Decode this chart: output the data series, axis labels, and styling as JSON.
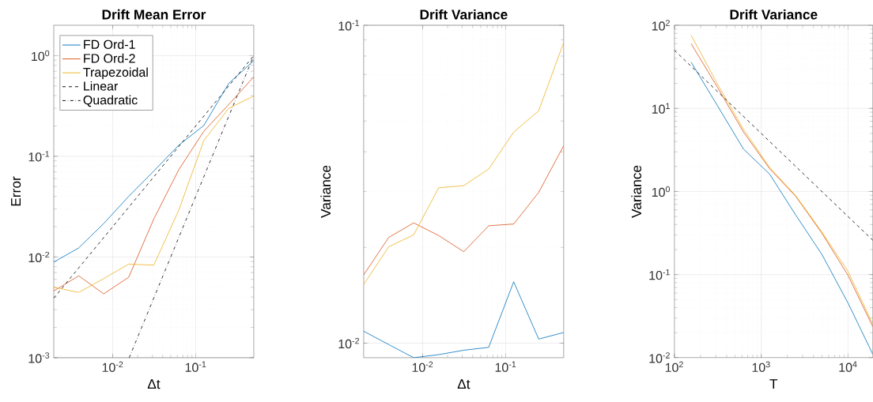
{
  "chart_data": [
    {
      "type": "line",
      "title": "Drift Mean Error",
      "xlabel": "Δt",
      "ylabel": "Error",
      "log": "xy",
      "grid": true,
      "legend": "top left",
      "xlim": [
        0.00195,
        0.5
      ],
      "ylim": [
        0.001,
        2
      ],
      "xticks": [
        {
          "value": 0.01,
          "label": "10$^{-2}$"
        },
        {
          "value": 0.1,
          "label": "10$^{-1}$"
        }
      ],
      "yticks": [
        {
          "value": 0.001,
          "label": "10$^{-3}$"
        },
        {
          "value": 0.01,
          "label": "10$^{-2}$"
        },
        {
          "value": 0.1,
          "label": "10$^{-1}$"
        },
        {
          "value": 1,
          "label": "10$^{0}$"
        }
      ],
      "series": [
        {
          "name": "FD Ord-1",
          "color": "#0072bd",
          "line_style": "solid",
          "x": [
            0.00195,
            0.0039,
            0.0078,
            0.0156,
            0.0313,
            0.0625,
            0.125,
            0.25,
            0.5
          ],
          "values": [
            0.0089,
            0.0123,
            0.0215,
            0.04,
            0.0714,
            0.129,
            0.202,
            0.53,
            0.89
          ]
        },
        {
          "name": "FD Ord-2",
          "color": "#d95319",
          "line_style": "solid",
          "x": [
            0.00195,
            0.0039,
            0.0078,
            0.0156,
            0.0313,
            0.0625,
            0.125,
            0.25,
            0.5
          ],
          "values": [
            0.0046,
            0.0065,
            0.0043,
            0.0063,
            0.0239,
            0.0736,
            0.177,
            0.327,
            0.615
          ]
        },
        {
          "name": "Trapezoidal",
          "color": "#edb120",
          "line_style": "solid",
          "x": [
            0.00195,
            0.0039,
            0.0078,
            0.0156,
            0.0313,
            0.0625,
            0.125,
            0.25,
            0.5
          ],
          "values": [
            0.005,
            0.00445,
            0.0061,
            0.0085,
            0.0083,
            0.0292,
            0.143,
            0.3,
            0.396
          ]
        },
        {
          "name": "Linear",
          "color": "#000000",
          "line_style": "dashed",
          "x": [
            0.00195,
            0.5
          ],
          "values": [
            0.0039,
            1.0
          ]
        },
        {
          "name": "Quadratic",
          "color": "#000000",
          "line_style": "dashdot",
          "x": [
            0.0158,
            0.5
          ],
          "values": [
            0.001,
            1.0
          ]
        }
      ]
    },
    {
      "type": "line",
      "title": "Drift Variance",
      "xlabel": "Δt",
      "ylabel": "Variance",
      "log": "xy",
      "grid": true,
      "xlim": [
        0.00195,
        0.5
      ],
      "ylim": [
        0.009,
        0.1
      ],
      "xticks": [
        {
          "value": 0.01,
          "label": "10$^{-2}$"
        },
        {
          "value": 0.1,
          "label": "10$^{-1}$"
        }
      ],
      "yticks": [
        {
          "value": 0.01,
          "label": "10$^{-2}$"
        },
        {
          "value": 0.1,
          "label": "10$^{-1}$"
        }
      ],
      "series": [
        {
          "color": "#0072bd",
          "line_style": "solid",
          "x": [
            0.00195,
            0.0039,
            0.0078,
            0.0156,
            0.0313,
            0.0625,
            0.125,
            0.25,
            0.5
          ],
          "values": [
            0.0109,
            0.0099,
            0.009,
            0.0092,
            0.0095,
            0.0097,
            0.0156,
            0.0103,
            0.0108
          ]
        },
        {
          "color": "#d95319",
          "line_style": "solid",
          "x": [
            0.00195,
            0.0039,
            0.0078,
            0.0156,
            0.0313,
            0.0625,
            0.125,
            0.25,
            0.5
          ],
          "values": [
            0.0164,
            0.0215,
            0.0239,
            0.0218,
            0.0194,
            0.0234,
            0.0237,
            0.0298,
            0.0418
          ]
        },
        {
          "color": "#edb120",
          "line_style": "solid",
          "x": [
            0.00195,
            0.0039,
            0.0078,
            0.0156,
            0.0313,
            0.0625,
            0.125,
            0.25,
            0.5
          ],
          "values": [
            0.0153,
            0.0201,
            0.0219,
            0.0308,
            0.0313,
            0.0353,
            0.0461,
            0.0538,
            0.0883
          ]
        }
      ]
    },
    {
      "type": "line",
      "title": "Drift Variance",
      "xlabel": "T",
      "ylabel": "Variance",
      "log": "xy",
      "grid": true,
      "xlim": [
        100,
        19300
      ],
      "ylim": [
        0.01,
        100
      ],
      "xticks": [
        {
          "value": 100,
          "label": "10$^{2}$"
        },
        {
          "value": 1000,
          "label": "10$^{3}$"
        },
        {
          "value": 10000,
          "label": "10$^{4}$"
        }
      ],
      "yticks": [
        {
          "value": 0.01,
          "label": "10$^{-2}$"
        },
        {
          "value": 0.1,
          "label": "10$^{-1}$"
        },
        {
          "value": 1,
          "label": "10$^{0}$"
        },
        {
          "value": 10,
          "label": "10$^{1}$"
        },
        {
          "value": 100,
          "label": "10$^{2}$"
        }
      ],
      "series": [
        {
          "color": "#0072bd",
          "line_style": "solid",
          "x": [
            156,
            313,
            625,
            1250,
            2500,
            5000,
            10000,
            19300
          ],
          "values": [
            36,
            10.8,
            3.24,
            1.62,
            0.52,
            0.175,
            0.0455,
            0.011
          ]
        },
        {
          "color": "#d95319",
          "line_style": "solid",
          "x": [
            156,
            313,
            625,
            1250,
            2500,
            5000,
            10000,
            19300
          ],
          "values": [
            60,
            18,
            5.2,
            1.88,
            0.873,
            0.315,
            0.098,
            0.0236
          ]
        },
        {
          "color": "#edb120",
          "line_style": "solid",
          "x": [
            156,
            313,
            625,
            1250,
            2500,
            5000,
            10000,
            19300
          ],
          "values": [
            76,
            19.7,
            5.6,
            1.95,
            0.89,
            0.326,
            0.109,
            0.0254
          ]
        },
        {
          "color": "#000000",
          "line_style": "dashed",
          "x": [
            100,
            19300
          ],
          "values": [
            50,
            0.259
          ]
        }
      ]
    }
  ]
}
